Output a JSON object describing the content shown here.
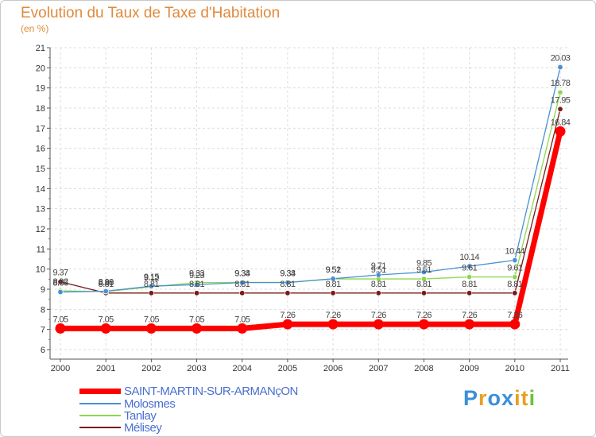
{
  "title": "Evolution du Taux de Taxe d'Habitation",
  "subtitle": "(en %)",
  "brand": {
    "letters": [
      "P",
      "r",
      "o",
      "x",
      "i",
      "t",
      "i"
    ],
    "colors": [
      "#3a8fd8",
      "#e8a020",
      "#3a8fd8",
      "#3a8fd8",
      "#e8a020",
      "#e8a020",
      "#6cc23a"
    ]
  },
  "chart_data": {
    "type": "line",
    "x": [
      2000,
      2001,
      2002,
      2003,
      2004,
      2005,
      2006,
      2007,
      2008,
      2009,
      2010,
      2011
    ],
    "yticks": [
      6,
      7,
      8,
      9,
      10,
      11,
      12,
      13,
      14,
      15,
      16,
      17,
      18,
      19,
      20,
      21
    ],
    "ylim": [
      6,
      21
    ],
    "grid": true,
    "legend": "bottom-left",
    "series": [
      {
        "name": "SAINT-MARTIN-SUR-ARMANçON",
        "color": "#ff0000",
        "values": [
          7.05,
          7.05,
          7.05,
          7.05,
          7.05,
          7.26,
          7.26,
          7.26,
          7.26,
          7.26,
          7.26,
          16.84
        ],
        "labels": [
          "7.05",
          "7.05",
          "7.05",
          "7.05",
          "7.05",
          "7.26",
          "7.26",
          "7.26",
          "7.26",
          "7.26",
          "7.26",
          "16.84"
        ]
      },
      {
        "name": "Molosmes",
        "color": "#4a8fd0",
        "values": [
          8.86,
          8.9,
          9.15,
          9.23,
          9.33,
          9.33,
          9.52,
          9.71,
          9.85,
          10.14,
          10.44,
          20.03
        ],
        "labels": [
          "8.86",
          "8.90",
          "9.15",
          "9.23",
          "9.33",
          "9.33",
          "9.52",
          "9.71",
          "9.85",
          "10.14",
          "10.44",
          "20.03"
        ]
      },
      {
        "name": "Tanlay",
        "color": "#8ed850",
        "values": [
          8.92,
          8.88,
          9.12,
          9.33,
          9.34,
          9.34,
          9.51,
          9.51,
          9.51,
          9.61,
          9.61,
          18.78
        ],
        "labels": [
          "8.92",
          "8.88",
          "9.12",
          "9.33",
          "9.34",
          "9.34",
          "9.51",
          "9.51",
          "9.51",
          "9.61",
          "9.61",
          "18.78"
        ]
      },
      {
        "name": "Mélisey",
        "color": "#7a1a1a",
        "values": [
          9.37,
          8.81,
          8.81,
          8.81,
          8.81,
          8.81,
          8.81,
          8.81,
          8.81,
          8.81,
          8.81,
          17.95
        ],
        "labels": [
          "9.37",
          "8.81",
          "8.81",
          "8.81",
          "8.81",
          "8.81",
          "8.81",
          "8.81",
          "8.81",
          "8.81",
          "8.81",
          "17.95"
        ]
      }
    ]
  }
}
